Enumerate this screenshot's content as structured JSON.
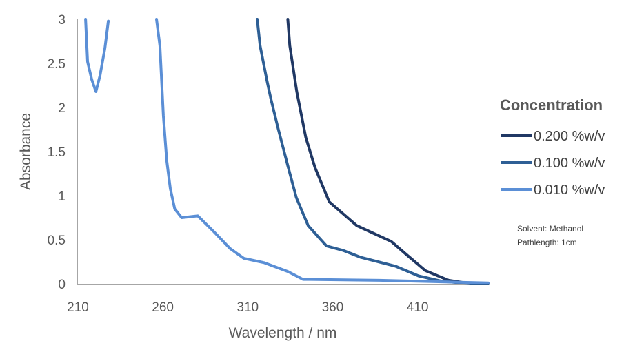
{
  "chart_data": {
    "type": "line",
    "title": "",
    "xlabel": "Wavelength / nm",
    "ylabel": "Absorbance",
    "xlim": [
      210,
      452
    ],
    "ylim": [
      0,
      3
    ],
    "xticks": [
      210,
      260,
      310,
      360,
      410
    ],
    "yticks": [
      0,
      0.5,
      1,
      1.5,
      2,
      2.5,
      3
    ],
    "ytick_labels": [
      "0",
      "0.5",
      "1",
      "1.5",
      "2",
      "2.5",
      "3"
    ],
    "grid": false,
    "legend": {
      "title": "Concentration",
      "placement": "right"
    },
    "annotations": [
      "Solvent: Methanol",
      "Pathlength: 1cm"
    ],
    "series": [
      {
        "name": "0.200 %w/v",
        "color": "#203864",
        "segments": [
          [
            [
              334,
              3.0
            ],
            [
              335.2,
              2.7
            ],
            [
              339.3,
              2.18
            ],
            [
              344.6,
              1.66
            ],
            [
              350,
              1.32
            ],
            [
              358.4,
              0.93
            ],
            [
              365,
              0.82
            ],
            [
              374.6,
              0.66
            ],
            [
              395,
              0.48
            ],
            [
              404,
              0.33
            ],
            [
              415,
              0.15
            ],
            [
              428.7,
              0.04
            ],
            [
              442,
              0.0
            ],
            [
              452,
              0.0
            ]
          ]
        ]
      },
      {
        "name": "0.100 %w/v",
        "color": "#2e5f95",
        "segments": [
          [
            [
              316,
              3.0
            ],
            [
              317.7,
              2.7
            ],
            [
              321.8,
              2.3
            ],
            [
              324,
              2.1
            ],
            [
              328.3,
              1.76
            ],
            [
              334,
              1.34
            ],
            [
              339,
              0.98
            ],
            [
              346,
              0.66
            ],
            [
              356.8,
              0.43
            ],
            [
              366.5,
              0.38
            ],
            [
              377,
              0.3
            ],
            [
              397.4,
              0.2
            ],
            [
              411,
              0.09
            ],
            [
              424.6,
              0.03
            ],
            [
              442,
              0.0
            ],
            [
              452,
              0.0
            ]
          ]
        ]
      },
      {
        "name": "0.010 %w/v",
        "color": "#5b8fd6",
        "segments": [
          [
            [
              214.9,
              3.0
            ],
            [
              216.1,
              2.52
            ],
            [
              218.5,
              2.32
            ],
            [
              221,
              2.18
            ],
            [
              223.4,
              2.36
            ],
            [
              226.3,
              2.67
            ],
            [
              228.3,
              2.98
            ]
          ],
          [
            [
              256.7,
              3.0
            ],
            [
              258.7,
              2.7
            ],
            [
              260.7,
              1.91
            ],
            [
              262.7,
              1.4
            ],
            [
              264.8,
              1.08
            ],
            [
              267.4,
              0.85
            ],
            [
              271.5,
              0.75
            ],
            [
              281,
              0.77
            ],
            [
              290.5,
              0.59
            ],
            [
              300,
              0.4
            ],
            [
              308,
              0.29
            ],
            [
              320,
              0.24
            ],
            [
              334,
              0.14
            ],
            [
              343,
              0.05
            ],
            [
              347,
              0.05
            ],
            [
              388,
              0.04
            ],
            [
              452,
              0.01
            ]
          ]
        ]
      }
    ]
  }
}
